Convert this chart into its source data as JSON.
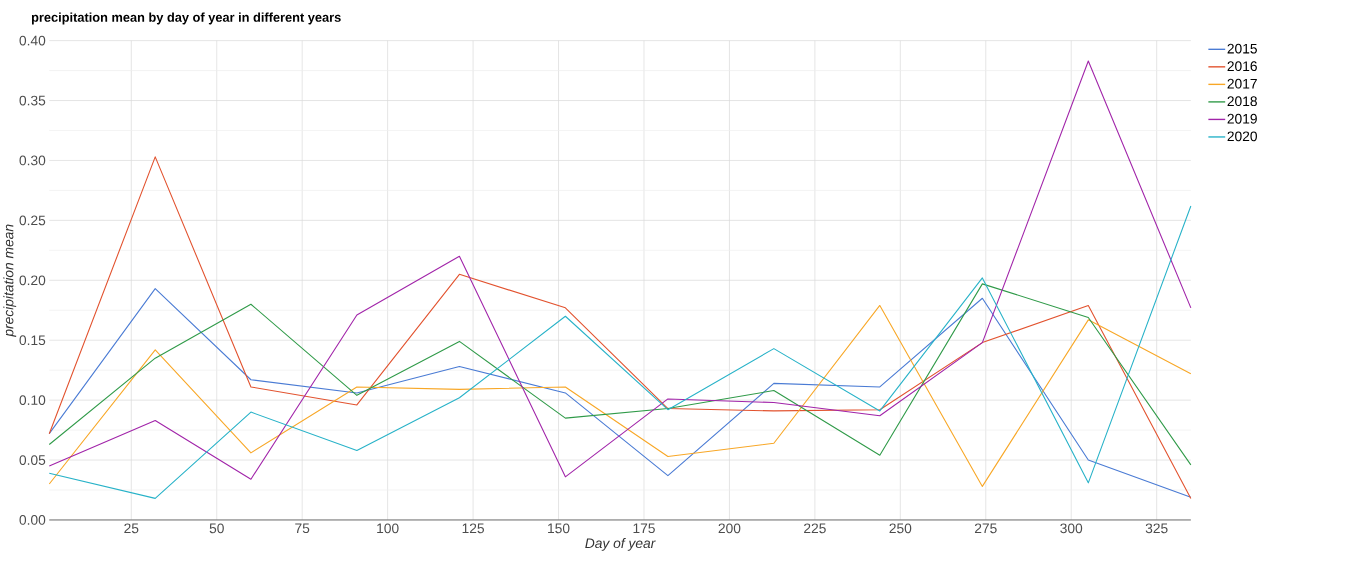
{
  "chart_data": {
    "type": "line",
    "title": "precipitation mean by day of year in different years",
    "xlabel": "Day of year",
    "ylabel": "precipitation mean",
    "x": [
      1,
      32,
      60,
      91,
      121,
      152,
      182,
      213,
      244,
      274,
      305,
      335
    ],
    "series": [
      {
        "name": "2015",
        "color": "#4a7bd4",
        "values": [
          0.072,
          0.193,
          0.117,
          0.106,
          0.128,
          0.106,
          0.037,
          0.114,
          0.111,
          0.185,
          0.05,
          0.019
        ]
      },
      {
        "name": "2016",
        "color": "#e2522e",
        "values": [
          0.072,
          0.303,
          0.111,
          0.096,
          0.205,
          0.177,
          0.093,
          0.091,
          0.092,
          0.148,
          0.179,
          0.018
        ]
      },
      {
        "name": "2017",
        "color": "#f8a726",
        "values": [
          0.03,
          0.142,
          0.056,
          0.111,
          0.109,
          0.111,
          0.053,
          0.064,
          0.179,
          0.028,
          0.167,
          0.122
        ]
      },
      {
        "name": "2018",
        "color": "#2f9a48",
        "values": [
          0.063,
          0.135,
          0.18,
          0.104,
          0.149,
          0.085,
          0.093,
          0.108,
          0.054,
          0.197,
          0.169,
          0.046
        ]
      },
      {
        "name": "2019",
        "color": "#a124a9",
        "values": [
          0.045,
          0.083,
          0.034,
          0.171,
          0.22,
          0.036,
          0.101,
          0.098,
          0.087,
          0.148,
          0.383,
          0.177
        ]
      },
      {
        "name": "2020",
        "color": "#27b2c8",
        "values": [
          0.039,
          0.018,
          0.09,
          0.058,
          0.102,
          0.17,
          0.092,
          0.143,
          0.091,
          0.202,
          0.031,
          0.262
        ]
      }
    ],
    "xlim": [
      1,
      335
    ],
    "ylim": [
      0,
      0.4
    ],
    "xticks": [
      25,
      50,
      75,
      100,
      125,
      150,
      175,
      200,
      225,
      250,
      275,
      300,
      325
    ],
    "yticks": [
      {
        "value": 0,
        "label": "0.00"
      },
      {
        "value": 0.05,
        "label": "0.05"
      },
      {
        "value": 0.1,
        "label": "0.10"
      },
      {
        "value": 0.15,
        "label": "0.15"
      },
      {
        "value": 0.2,
        "label": "0.20"
      },
      {
        "value": 0.25,
        "label": "0.25"
      },
      {
        "value": 0.3,
        "label": "0.30"
      },
      {
        "value": 0.35,
        "label": "0.35"
      },
      {
        "value": 0.4,
        "label": "0.40"
      }
    ],
    "grid": true,
    "legend": "top right",
    "marker": "none",
    "line_style": "solid"
  }
}
